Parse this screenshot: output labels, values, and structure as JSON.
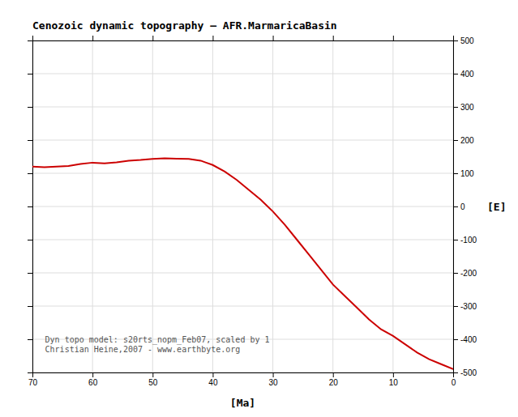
{
  "chart_data": {
    "type": "line",
    "title": "Cenozoic dynamic topography – AFR.MarmaricaBasin",
    "xlabel": "[Ma]",
    "ylabel": "[E]",
    "annotations": [
      "Dyn topo model: s20rts_nopm_Feb07, scaled by 1",
      "Christian Heine,2007 - www.earthbyte.org"
    ],
    "x": [
      70,
      68,
      66,
      64,
      62,
      60,
      58,
      56,
      54,
      52,
      50,
      48,
      46,
      44,
      42,
      40,
      38,
      36,
      34,
      32,
      30,
      28,
      26,
      24,
      22,
      20,
      18,
      16,
      14,
      12,
      10,
      8,
      6,
      4,
      2,
      0
    ],
    "values": [
      120,
      118,
      120,
      122,
      128,
      132,
      130,
      133,
      138,
      140,
      143,
      145,
      144,
      143,
      138,
      125,
      105,
      80,
      50,
      20,
      -15,
      -55,
      -100,
      -145,
      -190,
      -235,
      -270,
      -305,
      -340,
      -370,
      -390,
      -415,
      -440,
      -460,
      -475,
      -490
    ],
    "color": "#cc0000",
    "xlim": [
      70,
      0
    ],
    "ylim": [
      -500,
      500
    ],
    "xticks": [
      70,
      60,
      50,
      40,
      30,
      20,
      10,
      0
    ],
    "yticks": [
      -500,
      -400,
      -300,
      -200,
      -100,
      0,
      100,
      200,
      300,
      400,
      500
    ],
    "grid": true
  }
}
